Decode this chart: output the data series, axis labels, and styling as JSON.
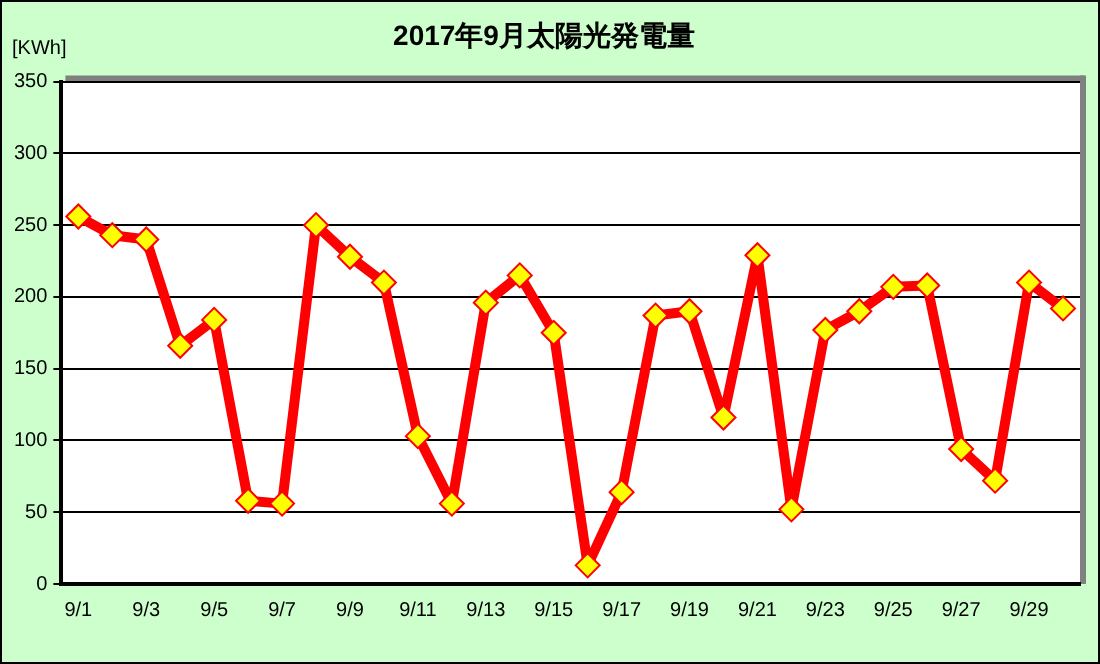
{
  "chart_data": {
    "type": "line",
    "title": "2017年9月太陽光発電量",
    "ylabel": "[KWh]",
    "categories": [
      "9/1",
      null,
      "9/3",
      null,
      "9/5",
      null,
      "9/7",
      null,
      "9/9",
      null,
      "9/11",
      null,
      "9/13",
      null,
      "9/15",
      null,
      "9/17",
      null,
      "9/19",
      null,
      "9/21",
      null,
      "9/23",
      null,
      "9/25",
      null,
      "9/27",
      null,
      "9/29",
      null
    ],
    "series": [
      {
        "color": "#ff0000",
        "values": [
          256,
          243,
          240,
          166,
          184,
          58,
          56,
          250,
          228,
          210,
          103,
          56,
          196,
          215,
          175,
          13,
          64,
          187,
          190,
          116,
          229,
          52,
          177,
          190,
          207,
          208,
          94,
          72,
          210,
          192
        ]
      }
    ],
    "ylim": [
      0,
      350
    ],
    "yticks": [
      0,
      50,
      100,
      150,
      200,
      250,
      300,
      350
    ],
    "grid": "y",
    "legend": false,
    "marker": "diamond",
    "line_style": "solid"
  }
}
